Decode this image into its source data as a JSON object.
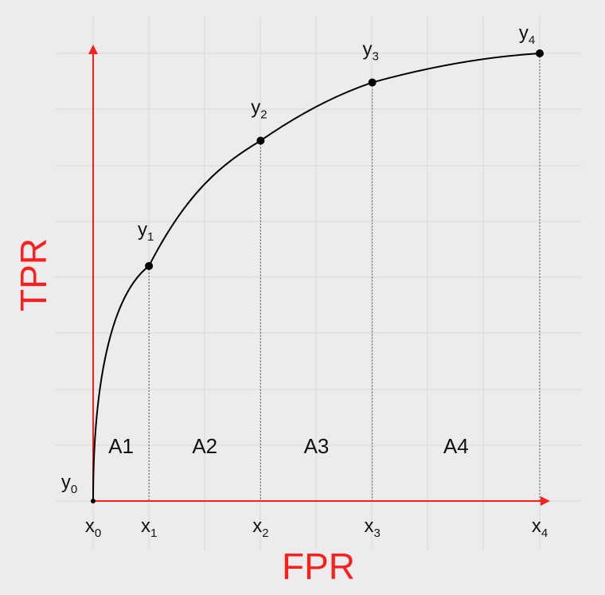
{
  "diagram": {
    "axes": {
      "x_title": "FPR",
      "y_title": "TPR",
      "color": "#ff1f1f"
    },
    "points": [
      {
        "x_label": "x",
        "x_sub": "0",
        "y_label": "y",
        "y_sub": "0",
        "x": 0.0,
        "y": 0.0
      },
      {
        "x_label": "x",
        "x_sub": "1",
        "y_label": "y",
        "y_sub": "1",
        "x": 0.125,
        "y": 0.525
      },
      {
        "x_label": "x",
        "x_sub": "2",
        "y_label": "y",
        "y_sub": "2",
        "x": 0.375,
        "y": 0.805
      },
      {
        "x_label": "x",
        "x_sub": "3",
        "y_label": "y",
        "y_sub": "3",
        "x": 0.625,
        "y": 0.935
      },
      {
        "x_label": "x",
        "x_sub": "4",
        "y_label": "y",
        "y_sub": "4",
        "x": 1.0,
        "y": 1.0
      }
    ],
    "areas": [
      "A1",
      "A2",
      "A3",
      "A4"
    ],
    "colors": {
      "background": "#ececec",
      "grid": "#d8d8d8",
      "curve": "#000000",
      "dashed": "#555555"
    }
  }
}
